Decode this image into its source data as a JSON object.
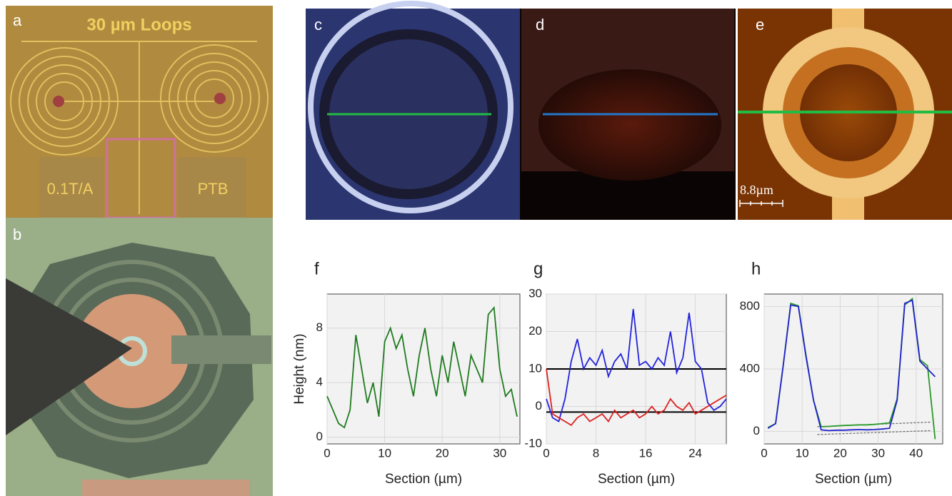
{
  "panels": {
    "a": "a",
    "a_title": "30 µm Loops",
    "a_left": "0.1T/A",
    "a_right": "PTB",
    "b": "b",
    "c": "c",
    "d": "d",
    "e": "e",
    "e_scale": "8.8µm"
  },
  "chart_data": [
    {
      "type": "line",
      "title": "f",
      "x_label": "Section (µm)",
      "y_label": "Height (nm)",
      "x": [
        0,
        1,
        2,
        3,
        4,
        5,
        6,
        7,
        8,
        9,
        10,
        11,
        12,
        13,
        14,
        15,
        16,
        17,
        18,
        19,
        20,
        21,
        22,
        23,
        24,
        25,
        26,
        27,
        28,
        29,
        30,
        31,
        32,
        33
      ],
      "series": [
        {
          "color": "#1f7a1f",
          "values": [
            3,
            2,
            1,
            0.7,
            2,
            7.5,
            5,
            2.5,
            4,
            1.5,
            7,
            8,
            6.5,
            7.5,
            5,
            3,
            6,
            8,
            5,
            3,
            6,
            4,
            7,
            5,
            3,
            6,
            5,
            4,
            9,
            9.5,
            5,
            3,
            3.5,
            1.5
          ]
        }
      ],
      "xlim": [
        0,
        33.5
      ],
      "ylim": [
        -0.5,
        10.5
      ],
      "xticks": [
        0,
        10,
        20,
        30
      ],
      "yticks": [
        0,
        4,
        8
      ],
      "grid": true
    },
    {
      "type": "line",
      "title": "g",
      "x_label": "Section (µm)",
      "x": [
        0,
        1,
        2,
        3,
        4,
        5,
        6,
        7,
        8,
        9,
        10,
        11,
        12,
        13,
        14,
        15,
        16,
        17,
        18,
        19,
        20,
        21,
        22,
        23,
        24,
        25,
        26,
        27,
        28,
        29
      ],
      "series": [
        {
          "color": "#2222dd",
          "values": [
            2,
            -3,
            -4,
            2,
            12,
            18,
            10,
            13,
            11,
            15,
            8,
            12,
            14,
            10,
            26,
            11,
            12,
            10,
            13,
            11,
            20,
            9,
            13,
            25,
            12,
            10,
            1,
            -1,
            0,
            2
          ]
        },
        {
          "color": "#dd2222",
          "values": [
            10,
            -2,
            -3,
            -4,
            -5,
            -3,
            -2,
            -4,
            -3,
            -2,
            -4,
            -1,
            -3,
            -2,
            -1,
            -3,
            -2,
            0,
            -2,
            -1,
            2,
            0,
            -1,
            1,
            -2,
            -1,
            0,
            1,
            2,
            3
          ]
        }
      ],
      "hlines": [
        10,
        -1.5
      ],
      "hline_color": "#000",
      "xlim": [
        0,
        29
      ],
      "ylim": [
        -10,
        30
      ],
      "xticks": [
        0,
        8,
        16,
        24
      ],
      "yticks": [
        -10,
        0,
        10,
        20,
        30
      ],
      "grid": true
    },
    {
      "type": "line",
      "title": "h",
      "x_label": "Section (µm)",
      "x": [
        1,
        3,
        5,
        7,
        9,
        11,
        13,
        15,
        17,
        19,
        21,
        23,
        25,
        27,
        29,
        31,
        33,
        35,
        37,
        39,
        41,
        43,
        45
      ],
      "series": [
        {
          "color": "#2a9a2a",
          "values": [
            25,
            50,
            420,
            820,
            805,
            490,
            200,
            30,
            32,
            35,
            38,
            40,
            42,
            42,
            45,
            50,
            55,
            210,
            810,
            850,
            460,
            420,
            -50
          ]
        },
        {
          "color": "#2222cc",
          "values": [
            20,
            50,
            420,
            810,
            800,
            480,
            200,
            10,
            5,
            8,
            8,
            10,
            12,
            10,
            12,
            15,
            20,
            200,
            820,
            840,
            450,
            400,
            350
          ]
        }
      ],
      "trend_lines": [
        {
          "x": [
            14,
            44
          ],
          "values": [
            30,
            60
          ]
        },
        {
          "x": [
            14,
            44
          ],
          "values": [
            -20,
            5
          ]
        }
      ],
      "trend_color": "#666",
      "xlim": [
        0,
        47
      ],
      "ylim": [
        -80,
        880
      ],
      "xticks": [
        0,
        10,
        20,
        30,
        40
      ],
      "yticks": [
        0,
        400,
        800
      ],
      "grid": true
    }
  ]
}
